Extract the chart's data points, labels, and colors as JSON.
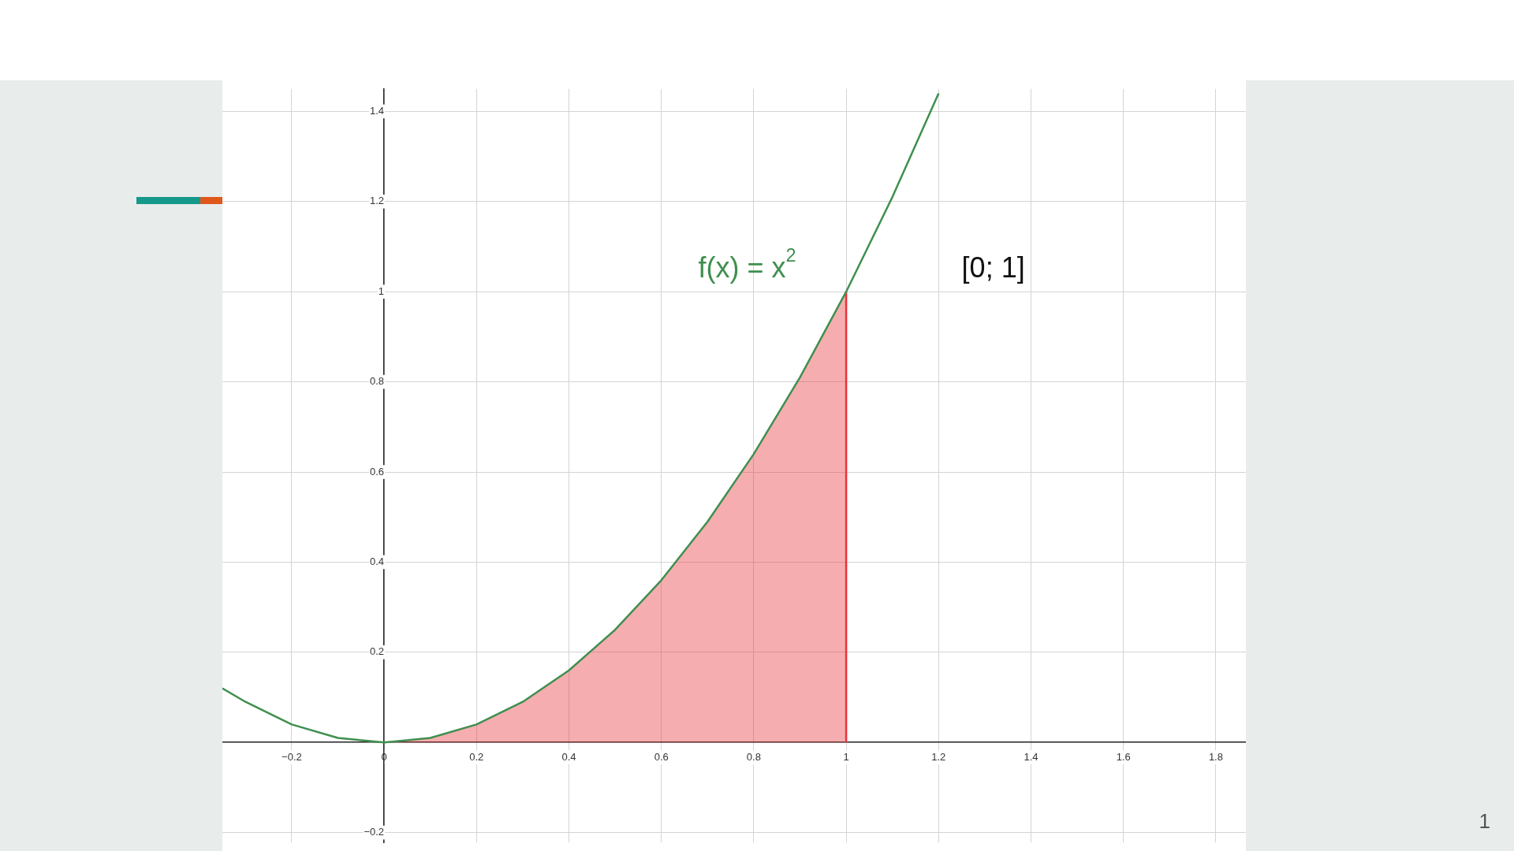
{
  "chart_data": {
    "type": "line",
    "xlim": [
      -0.35,
      1.865
    ],
    "ylim": [
      -0.222,
      1.45
    ],
    "xticks": [
      {
        "value": -0.2,
        "label": "−0.2"
      },
      0,
      0.2,
      0.4,
      0.6,
      0.8,
      1,
      1.2,
      1.4,
      1.6,
      1.8
    ],
    "yticks": [
      {
        "value": -0.2,
        "label": "−0.2"
      },
      0.2,
      0.4,
      0.6,
      0.8,
      1,
      1.2,
      1.4
    ],
    "grid": true,
    "series": [
      {
        "type": "area",
        "color": "#e8333a",
        "x": [
          0,
          0.1,
          0.2,
          0.3,
          0.4,
          0.5,
          0.6,
          0.7,
          0.8,
          0.9,
          1
        ],
        "values": [
          0,
          0.01,
          0.04,
          0.09,
          0.16,
          0.25,
          0.36,
          0.49,
          0.64,
          0.81,
          1
        ]
      },
      {
        "type": "line",
        "color": "#e8333a",
        "x": [
          1,
          1
        ],
        "values": [
          0,
          1
        ]
      },
      {
        "type": "line",
        "color": "#3f8f4f",
        "x": [
          -0.35,
          -0.3,
          -0.2,
          -0.1,
          0,
          0.1,
          0.2,
          0.3,
          0.4,
          0.5,
          0.6,
          0.7,
          0.8,
          0.9,
          1,
          1.1,
          1.2
        ],
        "values": [
          0.12,
          0.09,
          0.04,
          0.01,
          0,
          0.01,
          0.04,
          0.09,
          0.16,
          0.25,
          0.36,
          0.49,
          0.64,
          0.81,
          1,
          1.21,
          1.44
        ]
      }
    ],
    "annotations": [
      "f(x) = x$^{2}$",
      "[0; 1]",
      "1"
    ]
  }
}
